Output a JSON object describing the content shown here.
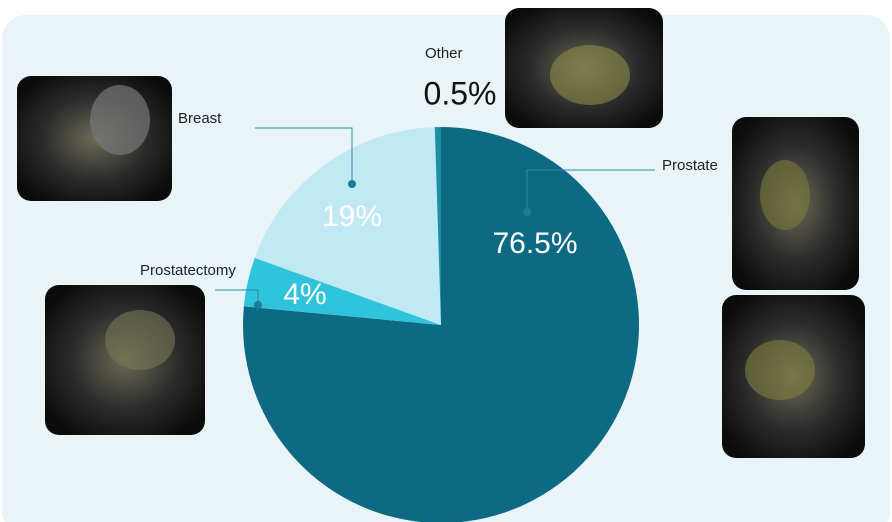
{
  "chart_data": {
    "type": "pie",
    "categories": [
      "Prostate",
      "Prostatectomy",
      "Breast",
      "Other"
    ],
    "values": [
      76.5,
      4,
      19,
      0.5
    ],
    "value_labels": [
      "76.5%",
      "4%",
      "19%",
      "0.5%"
    ],
    "colors": [
      "#0e6a83",
      "#2fc3dc",
      "#c1e9f3",
      "#1d8ea6"
    ]
  }
}
